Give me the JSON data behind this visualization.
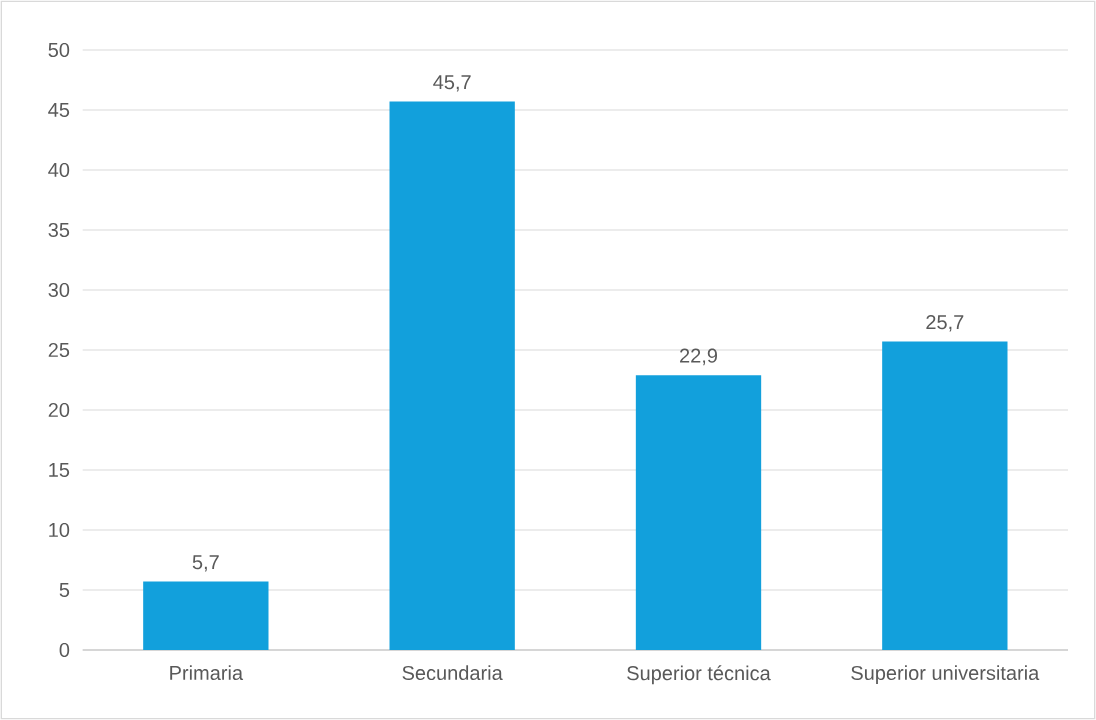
{
  "chart_data": {
    "type": "bar",
    "categories": [
      "Primaria",
      "Secundaria",
      "Superior técnica",
      "Superior universitaria"
    ],
    "values": [
      5.7,
      45.7,
      22.9,
      25.7
    ],
    "value_labels": [
      "5,7",
      "45,7",
      "22,9",
      "25,7"
    ],
    "color": "#12a0dc",
    "ylim": [
      0,
      50
    ],
    "yticks": [
      0,
      5,
      10,
      15,
      20,
      25,
      30,
      35,
      40,
      45,
      50
    ],
    "grid": "y"
  }
}
